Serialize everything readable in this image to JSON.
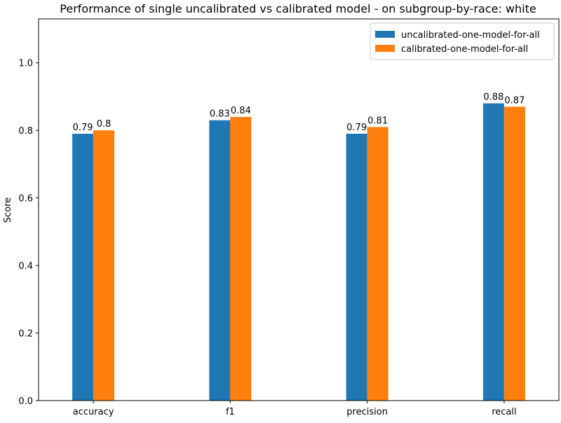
{
  "chart_data": {
    "type": "bar",
    "title": "Performance of single uncalibrated vs calibrated model - on subgroup-by-race: white",
    "xlabel": "",
    "ylabel": "Score",
    "ylim": [
      0,
      1.13
    ],
    "yticks": [
      "0.0",
      "0.2",
      "0.4",
      "0.6",
      "0.8",
      "1.0"
    ],
    "yticks_values": [
      0.0,
      0.2,
      0.4,
      0.6,
      0.8,
      1.0
    ],
    "categories": [
      "accuracy",
      "f1",
      "precision",
      "recall"
    ],
    "series": [
      {
        "name": "uncalibrated-one-model-for-all",
        "color": "#1f77b4",
        "values": [
          0.79,
          0.83,
          0.79,
          0.88
        ],
        "labels": [
          "0.79",
          "0.83",
          "0.79",
          "0.88"
        ]
      },
      {
        "name": "calibrated-one-model-for-all",
        "color": "#ff7f0e",
        "values": [
          0.8,
          0.84,
          0.81,
          0.87
        ],
        "labels": [
          "0.8",
          "0.84",
          "0.81",
          "0.87"
        ]
      }
    ],
    "legend_position": "top-right",
    "grid": false
  }
}
